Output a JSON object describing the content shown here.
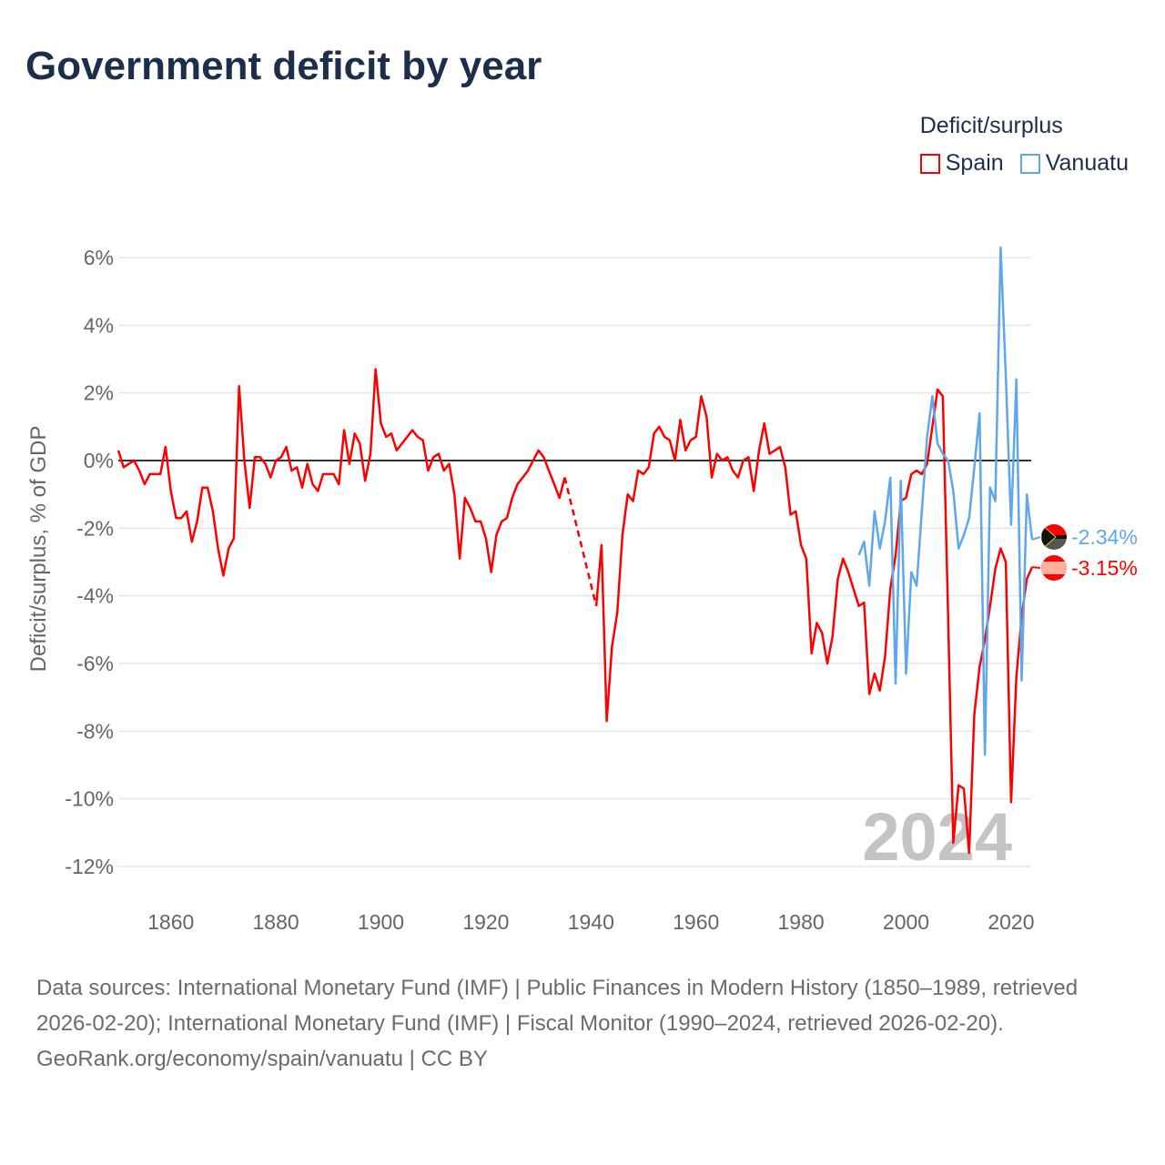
{
  "title": "Government deficit by year",
  "legend": {
    "title": "Deficit/surplus",
    "items": [
      {
        "name": "Spain",
        "color": "#ff0000"
      },
      {
        "name": "Vanuatu",
        "color": "#5fa6ea"
      }
    ]
  },
  "year_watermark": "2024",
  "footer": {
    "sources": "Data sources: International Monetary Fund (IMF) | Public Finances in Modern History (1850–1989, retrieved 2026-02-20); International Monetary Fund (IMF) | Fiscal Monitor (1990–2024, retrieved 2026-02-20).",
    "credit": "GeoRank.org/economy/spain/vanuatu | CC BY"
  },
  "chart_data": {
    "type": "line",
    "title": "Government deficit by year",
    "xlabel": "",
    "ylabel": "Deficit/surplus, % of GDP",
    "xlim": [
      1850,
      2024
    ],
    "ylim": [
      -13,
      6.5
    ],
    "yticks": [
      6,
      4,
      2,
      0,
      -2,
      -4,
      -6,
      -8,
      -10,
      -12
    ],
    "ytick_labels": [
      "6%",
      "4%",
      "2%",
      "0%",
      "-2%",
      "-4%",
      "-6%",
      "-8%",
      "-10%",
      "-12%"
    ],
    "xticks": [
      1860,
      1880,
      1900,
      1920,
      1940,
      1960,
      1980,
      2000,
      2020
    ],
    "xtick_labels": [
      "1860",
      "1880",
      "1900",
      "1920",
      "1940",
      "1960",
      "1980",
      "2000",
      "2020"
    ],
    "grid": true,
    "legend_position": "top-right",
    "end_labels": {
      "Spain": "-3.15%",
      "Vanuatu": "-2.34%"
    },
    "series": [
      {
        "name": "Spain",
        "color": "#ff0000",
        "start_year": 1850,
        "values": [
          0.3,
          -0.2,
          -0.1,
          0.0,
          -0.3,
          -0.7,
          -0.4,
          -0.4,
          -0.4,
          0.4,
          -0.9,
          -1.7,
          -1.7,
          -1.5,
          -2.4,
          -1.8,
          -0.8,
          -0.8,
          -1.5,
          -2.6,
          -3.4,
          -2.6,
          -2.3,
          2.2,
          0.0,
          -1.4,
          0.1,
          0.1,
          -0.1,
          -0.5,
          0.0,
          0.1,
          0.4,
          -0.3,
          -0.2,
          -0.8,
          -0.1,
          -0.7,
          -0.9,
          -0.4,
          -0.4,
          -0.4,
          -0.7,
          0.9,
          -0.1,
          0.8,
          0.5,
          -0.6,
          0.2,
          2.7,
          1.1,
          0.7,
          0.8,
          0.3,
          0.5,
          0.7,
          0.9,
          0.7,
          0.6,
          -0.3,
          0.1,
          0.2,
          -0.3,
          -0.1,
          -1.0,
          -2.9,
          -1.1,
          -1.4,
          -1.8,
          -1.8,
          -2.3,
          -3.3,
          -2.2,
          -1.8,
          -1.7,
          -1.1,
          -0.7,
          -0.5,
          -0.3,
          0.0,
          0.3,
          0.1,
          -0.3,
          -0.7,
          -1.1,
          -0.5,
          null,
          null,
          null,
          null,
          null,
          -4.3,
          -2.5,
          -7.7,
          -5.5,
          -4.5,
          -2.2,
          -1.0,
          -1.2,
          -0.3,
          -0.4,
          -0.2,
          0.8,
          1.0,
          0.7,
          0.6,
          0.0,
          1.2,
          0.3,
          0.6,
          0.7,
          1.9,
          1.3,
          -0.5,
          0.2,
          0.0,
          0.1,
          -0.3,
          -0.5,
          0.0,
          0.1,
          -0.9,
          0.3,
          1.1,
          0.2,
          0.3,
          0.4,
          -0.2,
          -1.6,
          -1.5,
          -2.5,
          -2.9,
          -5.7,
          -4.8,
          -5.1,
          -6.0,
          -5.2,
          -3.5,
          -2.9,
          -3.3,
          -3.8,
          -4.3,
          -4.2,
          -6.9,
          -6.3,
          -6.8,
          -5.8,
          -3.8,
          -2.8,
          -1.2,
          -1.1,
          -0.4,
          -0.3,
          -0.4,
          -0.1,
          1.0,
          2.1,
          1.9,
          -4.6,
          -11.3,
          -9.6,
          -9.7,
          -11.6,
          -7.5,
          -6.1,
          -5.3,
          -4.3,
          -3.2,
          -2.6,
          -3.0,
          -10.1,
          -6.4,
          -4.6,
          -3.5,
          -3.15
        ]
      },
      {
        "name": "Vanuatu",
        "color": "#5fa6ea",
        "start_year": 1991,
        "values": [
          -2.8,
          -2.4,
          -3.7,
          -1.5,
          -2.6,
          -1.8,
          -0.5,
          -6.6,
          -0.6,
          -6.3,
          -3.3,
          -3.7,
          -1.5,
          0.7,
          1.9,
          0.5,
          0.2,
          0.0,
          -0.9,
          -2.6,
          -2.2,
          -1.7,
          -0.2,
          1.4,
          -8.7,
          -0.8,
          -1.2,
          6.3,
          2.5,
          -1.9,
          2.4,
          -6.5,
          -1.0,
          -2.34
        ]
      }
    ]
  }
}
